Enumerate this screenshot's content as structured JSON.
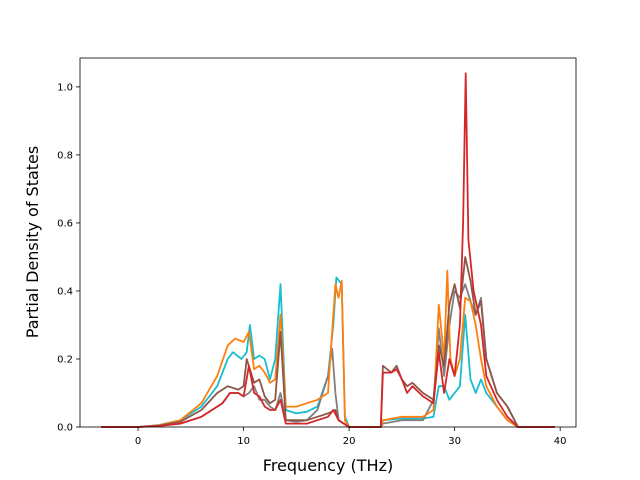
{
  "chart_data": {
    "type": "line",
    "title": "",
    "xlabel": "Frequency (THz)",
    "ylabel": "Partial Density of States",
    "xlim": [
      -5.5,
      41.5
    ],
    "ylim": [
      0,
      1.085
    ],
    "xticks": [
      0,
      10,
      20,
      30,
      40
    ],
    "yticks": [
      0.0,
      0.2,
      0.4,
      0.6,
      0.8,
      1.0
    ],
    "xtick_labels": [
      "0",
      "10",
      "20",
      "30",
      "40"
    ],
    "ytick_labels": [
      "0.0",
      "0.2",
      "0.4",
      "0.6",
      "0.8",
      "1.0"
    ],
    "grid": false,
    "legend": "none",
    "series": [
      {
        "color": "#17becf",
        "points": [
          [
            -3.5,
            0
          ],
          [
            0,
            0
          ],
          [
            2,
            0.006
          ],
          [
            4,
            0.02
          ],
          [
            6,
            0.06
          ],
          [
            7.5,
            0.12
          ],
          [
            8.5,
            0.2
          ],
          [
            9,
            0.22
          ],
          [
            9.8,
            0.2
          ],
          [
            10.3,
            0.22
          ],
          [
            10.6,
            0.3
          ],
          [
            11,
            0.2
          ],
          [
            11.5,
            0.21
          ],
          [
            12,
            0.2
          ],
          [
            12.5,
            0.14
          ],
          [
            13,
            0.2
          ],
          [
            13.5,
            0.42
          ],
          [
            14,
            0.05
          ],
          [
            15,
            0.04
          ],
          [
            16,
            0.045
          ],
          [
            17,
            0.06
          ],
          [
            18,
            0.15
          ],
          [
            18.5,
            0.3
          ],
          [
            18.8,
            0.44
          ],
          [
            19.3,
            0.42
          ],
          [
            19.6,
            0.03
          ],
          [
            20,
            0
          ],
          [
            23,
            0
          ],
          [
            23.2,
            0.02
          ],
          [
            25,
            0.025
          ],
          [
            27,
            0.025
          ],
          [
            28,
            0.03
          ],
          [
            28.5,
            0.12
          ],
          [
            29,
            0.12
          ],
          [
            29.5,
            0.08
          ],
          [
            30,
            0.1
          ],
          [
            30.5,
            0.12
          ],
          [
            31,
            0.33
          ],
          [
            31.5,
            0.14
          ],
          [
            32,
            0.1
          ],
          [
            32.5,
            0.14
          ],
          [
            33,
            0.1
          ],
          [
            34,
            0.06
          ],
          [
            35,
            0.02
          ],
          [
            36,
            0
          ],
          [
            39.5,
            0
          ]
        ]
      },
      {
        "color": "#7f7f7f",
        "points": [
          [
            -3.5,
            0
          ],
          [
            0,
            0
          ],
          [
            2,
            0.004
          ],
          [
            4,
            0.01
          ],
          [
            6,
            0.03
          ],
          [
            8,
            0.07
          ],
          [
            8.7,
            0.1
          ],
          [
            9.5,
            0.1
          ],
          [
            10,
            0.09
          ],
          [
            10.5,
            0.1
          ],
          [
            11,
            0.12
          ],
          [
            11.5,
            0.08
          ],
          [
            12,
            0.08
          ],
          [
            12.5,
            0.06
          ],
          [
            13,
            0.05
          ],
          [
            13.5,
            0.1
          ],
          [
            14,
            0.02
          ],
          [
            15,
            0.015
          ],
          [
            16,
            0.02
          ],
          [
            17,
            0.05
          ],
          [
            18,
            0.15
          ],
          [
            18.4,
            0.23
          ],
          [
            18.7,
            0.1
          ],
          [
            19,
            0.02
          ],
          [
            19.5,
            0.01
          ],
          [
            20,
            0
          ],
          [
            23,
            0
          ],
          [
            23.2,
            0.01
          ],
          [
            25,
            0.02
          ],
          [
            27,
            0.02
          ],
          [
            28,
            0.08
          ],
          [
            28.5,
            0.29
          ],
          [
            29,
            0.15
          ],
          [
            29.5,
            0.3
          ],
          [
            30,
            0.4
          ],
          [
            30.5,
            0.38
          ],
          [
            31,
            0.42
          ],
          [
            31.5,
            0.37
          ],
          [
            32,
            0.33
          ],
          [
            32.5,
            0.38
          ],
          [
            33,
            0.2
          ],
          [
            34,
            0.1
          ],
          [
            35,
            0.06
          ],
          [
            36,
            0
          ],
          [
            39.5,
            0
          ]
        ]
      },
      {
        "color": "#ff7f0e",
        "points": [
          [
            -3.5,
            0
          ],
          [
            0,
            0
          ],
          [
            2,
            0.005
          ],
          [
            4,
            0.02
          ],
          [
            6,
            0.07
          ],
          [
            7.5,
            0.15
          ],
          [
            8.5,
            0.24
          ],
          [
            9.2,
            0.26
          ],
          [
            10,
            0.25
          ],
          [
            10.5,
            0.28
          ],
          [
            11,
            0.17
          ],
          [
            11.5,
            0.18
          ],
          [
            12,
            0.16
          ],
          [
            12.5,
            0.13
          ],
          [
            13,
            0.14
          ],
          [
            13.5,
            0.33
          ],
          [
            14,
            0.06
          ],
          [
            15,
            0.06
          ],
          [
            16,
            0.07
          ],
          [
            17,
            0.08
          ],
          [
            18,
            0.1
          ],
          [
            18.7,
            0.42
          ],
          [
            19,
            0.38
          ],
          [
            19.3,
            0.43
          ],
          [
            19.6,
            0.02
          ],
          [
            20,
            0
          ],
          [
            23,
            0
          ],
          [
            23.2,
            0.02
          ],
          [
            25,
            0.03
          ],
          [
            27,
            0.03
          ],
          [
            28,
            0.05
          ],
          [
            28.5,
            0.36
          ],
          [
            29,
            0.2
          ],
          [
            29.3,
            0.46
          ],
          [
            29.6,
            0.2
          ],
          [
            30,
            0.15
          ],
          [
            30.5,
            0.2
          ],
          [
            31,
            0.38
          ],
          [
            31.5,
            0.37
          ],
          [
            32,
            0.3
          ],
          [
            32.5,
            0.2
          ],
          [
            33,
            0.12
          ],
          [
            34,
            0.06
          ],
          [
            35,
            0.02
          ],
          [
            36,
            0
          ],
          [
            39.5,
            0
          ]
        ]
      },
      {
        "color": "#8c564b",
        "points": [
          [
            -3.5,
            0
          ],
          [
            0,
            0
          ],
          [
            2,
            0.004
          ],
          [
            4,
            0.015
          ],
          [
            6,
            0.05
          ],
          [
            7.5,
            0.1
          ],
          [
            8.5,
            0.12
          ],
          [
            9.5,
            0.11
          ],
          [
            10,
            0.12
          ],
          [
            10.3,
            0.2
          ],
          [
            11,
            0.13
          ],
          [
            11.5,
            0.14
          ],
          [
            12,
            0.09
          ],
          [
            12.5,
            0.07
          ],
          [
            13,
            0.08
          ],
          [
            13.5,
            0.28
          ],
          [
            14,
            0.02
          ],
          [
            15,
            0.02
          ],
          [
            16,
            0.02
          ],
          [
            17,
            0.03
          ],
          [
            18,
            0.04
          ],
          [
            18.7,
            0.05
          ],
          [
            19,
            0.02
          ],
          [
            20,
            0
          ],
          [
            23,
            0
          ],
          [
            23.2,
            0.18
          ],
          [
            24,
            0.16
          ],
          [
            24.5,
            0.18
          ],
          [
            25,
            0.14
          ],
          [
            25.5,
            0.12
          ],
          [
            26,
            0.13
          ],
          [
            27,
            0.1
          ],
          [
            28,
            0.08
          ],
          [
            28.5,
            0.24
          ],
          [
            29,
            0.18
          ],
          [
            29.5,
            0.36
          ],
          [
            30,
            0.42
          ],
          [
            30.5,
            0.35
          ],
          [
            31,
            0.5
          ],
          [
            31.5,
            0.43
          ],
          [
            32,
            0.33
          ],
          [
            32.5,
            0.37
          ],
          [
            33,
            0.2
          ],
          [
            34,
            0.1
          ],
          [
            35,
            0.06
          ],
          [
            36,
            0
          ],
          [
            39.5,
            0
          ]
        ]
      },
      {
        "color": "#d62728",
        "points": [
          [
            -3.5,
            0
          ],
          [
            0,
            0
          ],
          [
            2,
            0.003
          ],
          [
            4,
            0.01
          ],
          [
            6,
            0.03
          ],
          [
            8,
            0.07
          ],
          [
            8.7,
            0.1
          ],
          [
            9.5,
            0.1
          ],
          [
            10,
            0.09
          ],
          [
            10.5,
            0.18
          ],
          [
            11,
            0.1
          ],
          [
            11.5,
            0.09
          ],
          [
            12,
            0.06
          ],
          [
            12.5,
            0.05
          ],
          [
            13,
            0.05
          ],
          [
            13.5,
            0.08
          ],
          [
            14,
            0.01
          ],
          [
            15,
            0.01
          ],
          [
            16,
            0.01
          ],
          [
            17,
            0.02
          ],
          [
            18,
            0.03
          ],
          [
            18.5,
            0.05
          ],
          [
            19,
            0.02
          ],
          [
            20,
            0
          ],
          [
            23,
            0
          ],
          [
            23.2,
            0.16
          ],
          [
            24,
            0.16
          ],
          [
            24.5,
            0.17
          ],
          [
            25,
            0.14
          ],
          [
            25.5,
            0.1
          ],
          [
            26,
            0.12
          ],
          [
            27,
            0.09
          ],
          [
            28,
            0.07
          ],
          [
            28.5,
            0.22
          ],
          [
            29,
            0.1
          ],
          [
            29.5,
            0.2
          ],
          [
            30,
            0.15
          ],
          [
            30.5,
            0.3
          ],
          [
            30.8,
            0.6
          ],
          [
            31.05,
            1.04
          ],
          [
            31.3,
            0.55
          ],
          [
            31.8,
            0.4
          ],
          [
            32.5,
            0.3
          ],
          [
            33,
            0.15
          ],
          [
            34,
            0.08
          ],
          [
            35,
            0.03
          ],
          [
            36,
            0
          ],
          [
            39.5,
            0
          ]
        ]
      }
    ]
  }
}
